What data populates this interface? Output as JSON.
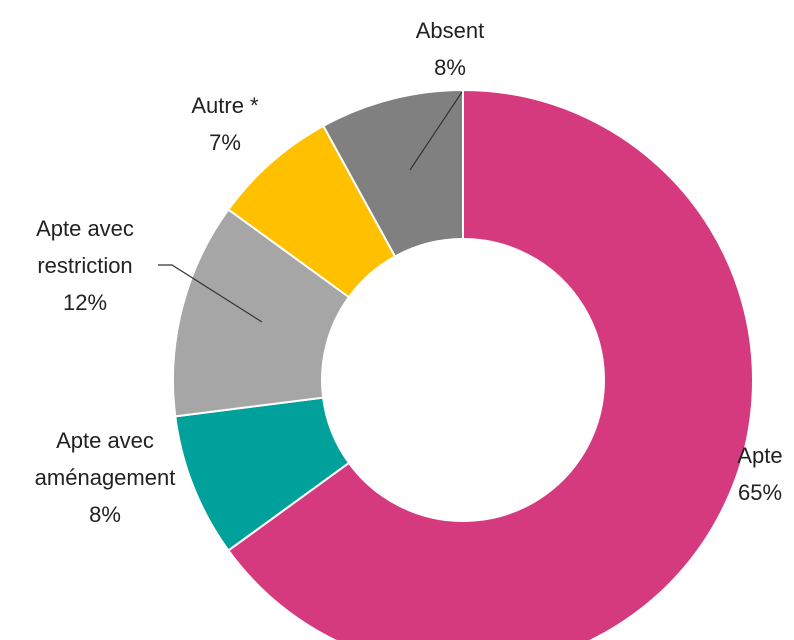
{
  "chart_data": {
    "type": "pie",
    "categories": [
      "Apte",
      "Apte avec aménagement",
      "Apte avec restriction",
      "Autre *",
      "Absent"
    ],
    "values": [
      65,
      8,
      12,
      7,
      8
    ],
    "value_labels": [
      "65%",
      "8%",
      "12%",
      "7%",
      "8%"
    ],
    "colors": [
      "#d63a7e",
      "#00a19a",
      "#a6a6a6",
      "#ffc000",
      "#808080"
    ]
  }
}
